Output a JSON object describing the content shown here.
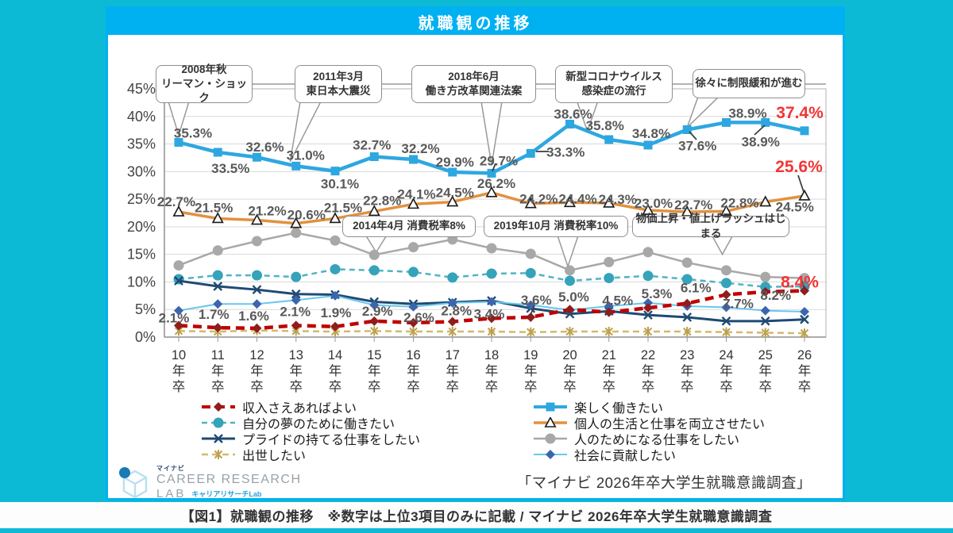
{
  "header": {
    "title": "就職観の推移"
  },
  "chart_data": {
    "type": "line",
    "title": "就職観の推移",
    "categories": [
      "10年卒",
      "11年卒",
      "12年卒",
      "13年卒",
      "14年卒",
      "15年卒",
      "16年卒",
      "17年卒",
      "18年卒",
      "19年卒",
      "20年卒",
      "21年卒",
      "22年卒",
      "23年卒",
      "24年卒",
      "25年卒",
      "26年卒"
    ],
    "ylim": [
      0,
      45
    ],
    "ytick_step": 5,
    "ytick_suffix": "%",
    "grid": "horizontal",
    "legend_position": "bottom",
    "note": "数字は上位3項目のみに記載",
    "series": [
      {
        "name": "人のためになる仕事をしたい",
        "color": "#a8a8a8",
        "marker": "circle",
        "width": 2.5,
        "values": [
          13.0,
          15.7,
          17.4,
          18.9,
          17.5,
          14.9,
          16.3,
          17.7,
          16.1,
          15.1,
          12.1,
          13.6,
          15.4,
          13.5,
          12.1,
          10.9,
          10.7
        ]
      },
      {
        "name": "自分の夢のために働きたい",
        "color": "#4fb3c6",
        "markerColor": "#35a3ba",
        "marker": "circle",
        "dash": "7 5",
        "width": 2.5,
        "values": [
          10.5,
          11.2,
          11.2,
          10.9,
          12.3,
          12.1,
          11.8,
          10.8,
          11.5,
          11.6,
          10.2,
          10.7,
          11.1,
          10.5,
          9.8,
          9.1,
          9.2
        ]
      },
      {
        "name": "出世したい",
        "color": "#d2b96a",
        "markerColor": "#bba04e",
        "marker": "asterisk",
        "dash": "8 5",
        "width": 2.5,
        "values": [
          1.1,
          1.0,
          1.2,
          1.1,
          1.0,
          1.1,
          1.0,
          1.0,
          1.0,
          0.9,
          1.0,
          1.0,
          1.0,
          1.0,
          0.9,
          0.8,
          0.7
        ]
      },
      {
        "name": "プライドの持てる仕事をしたい",
        "color": "#1f4a73",
        "marker": "x",
        "width": 3,
        "values": [
          10.2,
          9.2,
          8.6,
          7.8,
          7.7,
          6.4,
          6.0,
          6.3,
          6.6,
          5.2,
          4.2,
          4.7,
          4.0,
          3.6,
          2.9,
          2.9,
          3.2
        ]
      },
      {
        "name": "社会に貢献したい",
        "color": "#66c7ee",
        "markerColor": "#3b66ae",
        "marker": "diamond",
        "width": 2,
        "values": [
          4.8,
          6.0,
          6.0,
          6.7,
          7.5,
          5.8,
          5.5,
          6.2,
          6.4,
          5.8,
          4.9,
          5.6,
          6.2,
          5.6,
          5.4,
          4.8,
          4.6
        ]
      },
      {
        "name": "個人の生活と仕事を両立させたい",
        "color": "#e2913e",
        "marker": "triangle",
        "width": 3.5,
        "highlight_last": true,
        "values": [
          22.7,
          21.5,
          21.2,
          20.6,
          21.5,
          22.8,
          24.1,
          24.5,
          26.2,
          24.2,
          24.4,
          24.3,
          23.0,
          22.7,
          22.8,
          24.5,
          25.6
        ],
        "labels": [
          [
            -3,
            -13
          ],
          [
            -5,
            -14
          ],
          [
            13,
            -12
          ],
          [
            13,
            -11
          ],
          [
            10,
            -14
          ],
          [
            10,
            -14
          ],
          [
            4,
            -13
          ],
          [
            3,
            -12
          ],
          [
            6,
            -12
          ],
          [
            10,
            -6
          ],
          [
            10,
            -5
          ],
          [
            11,
            -5
          ],
          [
            7,
            -9
          ],
          [
            8,
            -9
          ],
          [
            17,
            -11
          ],
          [
            37,
            6
          ],
          [
            -7,
            -36
          ]
        ]
      },
      {
        "name": "楽しく働きたい",
        "color": "#2ea7e0",
        "marker": "square",
        "width": 4.5,
        "highlight_last": true,
        "values": [
          35.3,
          33.5,
          32.6,
          31.0,
          30.1,
          32.7,
          32.2,
          29.9,
          29.7,
          33.3,
          38.6,
          35.8,
          34.8,
          37.6,
          38.9,
          38.9,
          37.4
        ],
        "labels": [
          [
            18,
            -12
          ],
          [
            16,
            20
          ],
          [
            10,
            -13
          ],
          [
            12,
            -14
          ],
          [
            6,
            16
          ],
          [
            -3,
            -15
          ],
          [
            9,
            -14
          ],
          [
            3,
            -13
          ],
          [
            9,
            -16
          ],
          [
            44,
            -2
          ],
          [
            4,
            -13
          ],
          [
            -5,
            -18
          ],
          [
            4,
            -15
          ],
          [
            13,
            20
          ],
          [
            27,
            -12
          ],
          [
            -6,
            24
          ],
          [
            -6,
            -22
          ]
        ]
      },
      {
        "name": "収入さえあればよい",
        "color": "#c00000",
        "markerColor": "#8f1d1d",
        "marker": "diamond",
        "dash": "11 7",
        "width": 4.5,
        "highlight_last": true,
        "values": [
          2.1,
          1.7,
          1.6,
          2.1,
          1.9,
          2.9,
          2.6,
          2.8,
          3.4,
          3.6,
          5.0,
          4.5,
          5.3,
          6.1,
          7.7,
          8.2,
          8.4
        ],
        "labels": [
          [
            -6,
            -10
          ],
          [
            -5,
            -17
          ],
          [
            -4,
            -16
          ],
          [
            -1,
            -18
          ],
          [
            1,
            -18
          ],
          [
            4,
            -13
          ],
          [
            7,
            -7
          ],
          [
            5,
            -14
          ],
          [
            -3,
            -6
          ],
          [
            7,
            -22
          ],
          [
            5,
            -16
          ],
          [
            11,
            -15
          ],
          [
            11,
            -18
          ],
          [
            11,
            -20
          ],
          [
            15,
            11
          ],
          [
            13,
            4
          ],
          [
            -6,
            -10
          ]
        ]
      }
    ],
    "legend": {
      "columns": [
        [
          "収入さえあればよい",
          "自分の夢のために働きたい",
          "プライドの持てる仕事をしたい",
          "出世したい"
        ],
        [
          "楽しく働きたい",
          "個人の生活と仕事を両立させたい",
          "人のためになる仕事をしたい",
          "社会に貢献したい"
        ]
      ]
    },
    "annotations": {
      "top": [
        "2008年秋\nリーマン・ショック",
        "2011年3月\n東日本大震災",
        "2018年6月\n働き方改革関連法案",
        "新型コロナウイルス\n感染症の流行",
        "徐々に制限緩和が進む"
      ],
      "mid": [
        "2014年4月 消費税率8%",
        "2019年10月 消費税率10%",
        "物価上昇・値上げラッシュはじまる"
      ]
    },
    "label_colors": {
      "normal": "#595959",
      "highlight": "#f23535"
    }
  },
  "source": "「マイナビ 2026年卒大学生就職意識調査」",
  "logo": {
    "brand_small": "マイナビ",
    "line1": "CAREER RESEARCH",
    "line2": "LAB",
    "line2_sub": "キャリアリサーチLab"
  },
  "footer": {
    "caption": "【図1】就職観の推移　※数字は上位3項目のみに記載 / マイナビ 2026年卒大学生就職意識調査"
  }
}
